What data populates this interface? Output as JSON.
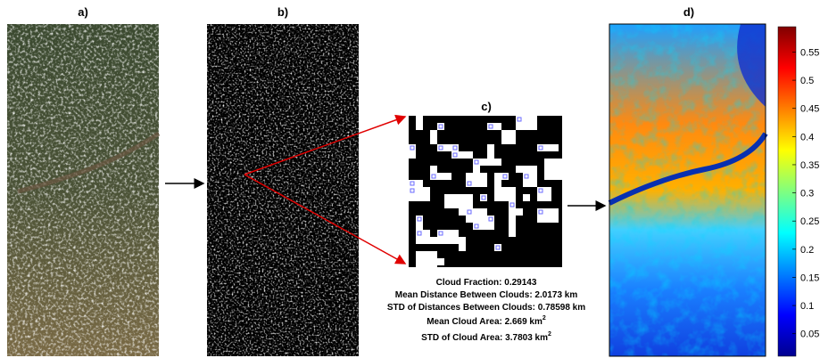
{
  "panels": {
    "a": "a)",
    "b": "b)",
    "c": "c)",
    "d": "d)"
  },
  "stats": [
    {
      "text": "Cloud Fraction: 0.29143"
    },
    {
      "text": "Mean Distance Between Clouds: 2.0173 km"
    },
    {
      "text": "STD of Distances Between Clouds: 0.78598 km"
    },
    {
      "text": "Mean Cloud Area: 2.669 km",
      "sup": "2"
    },
    {
      "text": "STD of Cloud Area: 3.7803 km",
      "sup": "2"
    }
  ],
  "colorbar": {
    "ylim": [
      0.01,
      0.595
    ],
    "yticks": [
      0.05,
      0.1,
      0.15,
      0.2,
      0.25,
      0.3,
      0.35,
      0.4,
      0.45,
      0.5,
      0.55
    ]
  }
}
